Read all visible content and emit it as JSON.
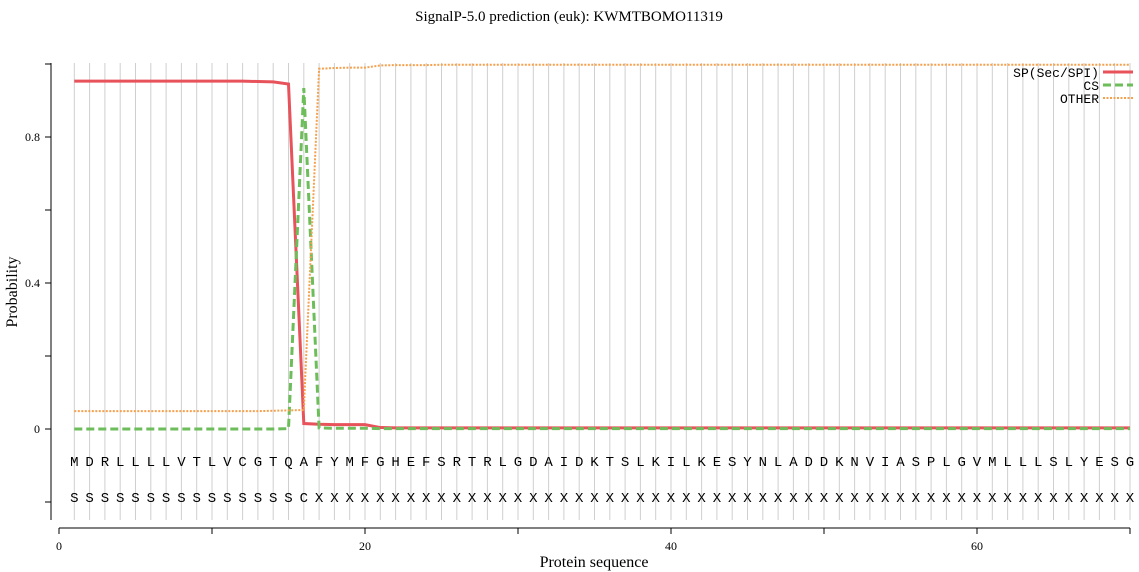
{
  "chart_data": {
    "type": "line",
    "title": "SignalP-5.0 prediction (euk):  KWMTBOMO11319",
    "xlabel": "Protein sequence",
    "ylabel": "Probability",
    "xlim": [
      0,
      70
    ],
    "ylim": [
      -0.25,
      1.0
    ],
    "x_ticks": [
      0,
      20,
      40,
      60
    ],
    "y_ticks": [
      0,
      0.4,
      0.8
    ],
    "grid": "vertical lines at each residue",
    "legend": "top-right",
    "sequence": "MDRLLLLVTLVCGTQAFYMFGHEFSRTRLGDAIDKTSLKILKESYNLADDKNVIASPLGVMLLLSLYESG",
    "labels": "SSSSSSSSSSSSSSSCXXXXXXXXXXXXXXXXXXXXXXXXXXXXXXXXXXXXXXXXXXXXXXXXXXXXXX",
    "series": [
      {
        "name": "SP(Sec/SPI)",
        "color": "#e8525a",
        "style": "solid",
        "values": [
          0.953,
          0.953,
          0.953,
          0.953,
          0.953,
          0.953,
          0.953,
          0.953,
          0.953,
          0.953,
          0.953,
          0.953,
          0.952,
          0.951,
          0.945,
          0.015,
          0.013,
          0.012,
          0.012,
          0.012,
          0.004,
          0.003,
          0.003,
          0.003,
          0.003,
          0.003,
          0.003,
          0.003,
          0.003,
          0.003,
          0.003,
          0.003,
          0.003,
          0.003,
          0.003,
          0.003,
          0.003,
          0.003,
          0.003,
          0.003,
          0.003,
          0.003,
          0.003,
          0.003,
          0.003,
          0.003,
          0.003,
          0.003,
          0.003,
          0.003,
          0.003,
          0.003,
          0.003,
          0.003,
          0.003,
          0.003,
          0.003,
          0.003,
          0.003,
          0.003,
          0.003,
          0.003,
          0.003,
          0.003,
          0.003,
          0.003,
          0.003,
          0.003,
          0.003,
          0.003
        ]
      },
      {
        "name": "CS",
        "color": "#6dbd5b",
        "style": "dashed",
        "values": [
          0,
          0,
          0,
          0,
          0,
          0,
          0,
          0,
          0,
          0,
          0,
          0,
          0,
          0,
          0.001,
          0.934,
          0.003,
          0.002,
          0.002,
          0.002,
          0.001,
          0.001,
          0.001,
          0.001,
          0.001,
          0.001,
          0.001,
          0.001,
          0.001,
          0.001,
          0.001,
          0.001,
          0.001,
          0.001,
          0.001,
          0.001,
          0.001,
          0.001,
          0.001,
          0.001,
          0.001,
          0.001,
          0.001,
          0.001,
          0.001,
          0.001,
          0.001,
          0.001,
          0.001,
          0.001,
          0.001,
          0.001,
          0.001,
          0.001,
          0.001,
          0.001,
          0.001,
          0.001,
          0.001,
          0.001,
          0.001,
          0.001,
          0.001,
          0.001,
          0.001,
          0.001,
          0.001,
          0.001,
          0.001,
          0.001
        ]
      },
      {
        "name": "OTHER",
        "color": "#f5a04c",
        "style": "dotted",
        "values": [
          0.049,
          0.049,
          0.049,
          0.049,
          0.049,
          0.049,
          0.049,
          0.049,
          0.049,
          0.049,
          0.049,
          0.049,
          0.049,
          0.05,
          0.051,
          0.052,
          0.987,
          0.989,
          0.99,
          0.99,
          0.996,
          0.997,
          0.997,
          0.997,
          0.998,
          0.998,
          0.998,
          0.998,
          0.998,
          0.998,
          0.998,
          0.998,
          0.998,
          0.998,
          0.998,
          0.998,
          0.998,
          0.998,
          0.998,
          0.998,
          0.998,
          0.998,
          0.998,
          0.998,
          0.998,
          0.998,
          0.998,
          0.998,
          0.998,
          0.998,
          0.998,
          0.998,
          0.998,
          0.998,
          0.998,
          0.998,
          0.998,
          0.998,
          0.998,
          0.998,
          0.998,
          0.998,
          0.998,
          0.998,
          0.998,
          0.998,
          0.998,
          0.998,
          0.998,
          0.998
        ]
      }
    ]
  }
}
